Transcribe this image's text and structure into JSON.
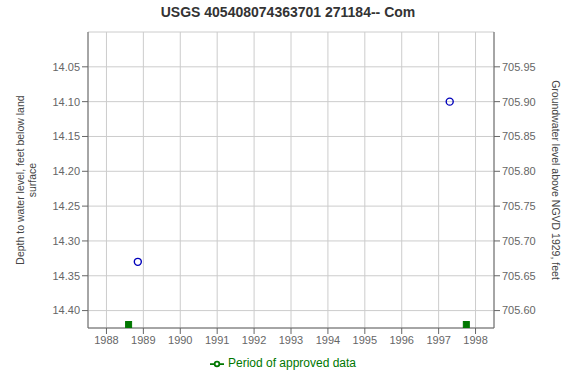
{
  "chart_data": {
    "type": "scatter",
    "title": "USGS 405408074363701 271184-- Com",
    "ylabel": "Depth to water level, feet below land\n surface",
    "y2label": "Groundwater level above NGVD 1929, feet",
    "xlim": [
      1987.5,
      1998.5
    ],
    "xticks": [
      1988,
      1989,
      1990,
      1991,
      1992,
      1993,
      1994,
      1995,
      1996,
      1997,
      1998
    ],
    "ylim": [
      14.425,
      14.0
    ],
    "yticks": [
      14.05,
      {
        "value": 14.1,
        "label": "14.10"
      },
      14.15,
      {
        "value": 14.2,
        "label": "14.20"
      },
      14.25,
      {
        "value": 14.3,
        "label": "14.30"
      },
      14.35,
      {
        "value": 14.4,
        "label": "14.40"
      }
    ],
    "y2lim": [
      705.575,
      706.0
    ],
    "y2ticks": [
      {
        "value": 705.6,
        "label": "705.60"
      },
      705.65,
      {
        "value": 705.7,
        "label": "705.70"
      },
      705.75,
      {
        "value": 705.8,
        "label": "705.80"
      },
      705.85,
      {
        "value": 705.9,
        "label": "705.90"
      },
      705.95
    ],
    "grid": true,
    "legend": "bottom",
    "series": [
      {
        "color": "#0000bb",
        "marker": "circle",
        "x": [
          1988.85,
          1997.3
        ],
        "values": [
          14.33,
          14.1
        ]
      },
      {
        "name": "Period of approved data",
        "color": "#007700",
        "marker": "square",
        "x": [
          1988.6,
          1997.75
        ],
        "values": [
          14.42,
          14.42
        ]
      }
    ]
  }
}
